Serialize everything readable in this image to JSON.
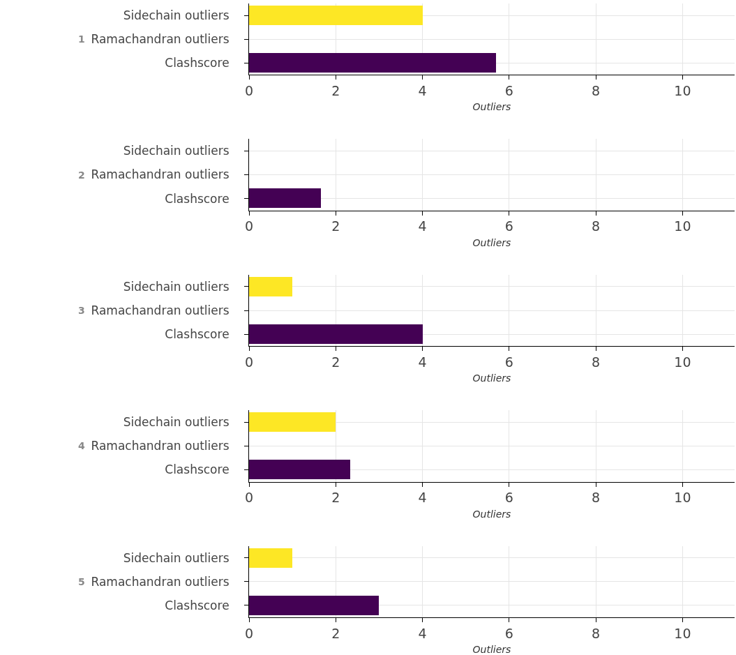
{
  "chart_data": [
    {
      "type": "bar",
      "orientation": "horizontal",
      "ylabel": "1",
      "xlabel": "Outliers",
      "categories": [
        "Sidechain outliers",
        "Ramachandran outliers",
        "Clashscore"
      ],
      "values": [
        4.0,
        0,
        5.7
      ],
      "colors": [
        "#fde725",
        "#21918c",
        "#440154"
      ],
      "xlim": [
        0,
        11.2
      ],
      "xticks": [
        0,
        2,
        4,
        6,
        8,
        10
      ],
      "grid": true
    },
    {
      "type": "bar",
      "orientation": "horizontal",
      "ylabel": "2",
      "xlabel": "Outliers",
      "categories": [
        "Sidechain outliers",
        "Ramachandran outliers",
        "Clashscore"
      ],
      "values": [
        0,
        0,
        1.65
      ],
      "colors": [
        "#fde725",
        "#21918c",
        "#440154"
      ],
      "xlim": [
        0,
        11.2
      ],
      "xticks": [
        0,
        2,
        4,
        6,
        8,
        10
      ],
      "grid": true
    },
    {
      "type": "bar",
      "orientation": "horizontal",
      "ylabel": "3",
      "xlabel": "Outliers",
      "categories": [
        "Sidechain outliers",
        "Ramachandran outliers",
        "Clashscore"
      ],
      "values": [
        1,
        0,
        4.0
      ],
      "colors": [
        "#fde725",
        "#21918c",
        "#440154"
      ],
      "xlim": [
        0,
        11.2
      ],
      "xticks": [
        0,
        2,
        4,
        6,
        8,
        10
      ],
      "grid": true
    },
    {
      "type": "bar",
      "orientation": "horizontal",
      "ylabel": "4",
      "xlabel": "Outliers",
      "categories": [
        "Sidechain outliers",
        "Ramachandran outliers",
        "Clashscore"
      ],
      "values": [
        2,
        0,
        2.33
      ],
      "colors": [
        "#fde725",
        "#21918c",
        "#440154"
      ],
      "xlim": [
        0,
        11.2
      ],
      "xticks": [
        0,
        2,
        4,
        6,
        8,
        10
      ],
      "grid": true
    },
    {
      "type": "bar",
      "orientation": "horizontal",
      "ylabel": "5",
      "xlabel": "Outliers",
      "categories": [
        "Sidechain outliers",
        "Ramachandran outliers",
        "Clashscore"
      ],
      "values": [
        1,
        0,
        3.0
      ],
      "colors": [
        "#fde725",
        "#21918c",
        "#440154"
      ],
      "xlim": [
        0,
        11.2
      ],
      "xticks": [
        0,
        2,
        4,
        6,
        8,
        10
      ],
      "grid": true
    }
  ]
}
